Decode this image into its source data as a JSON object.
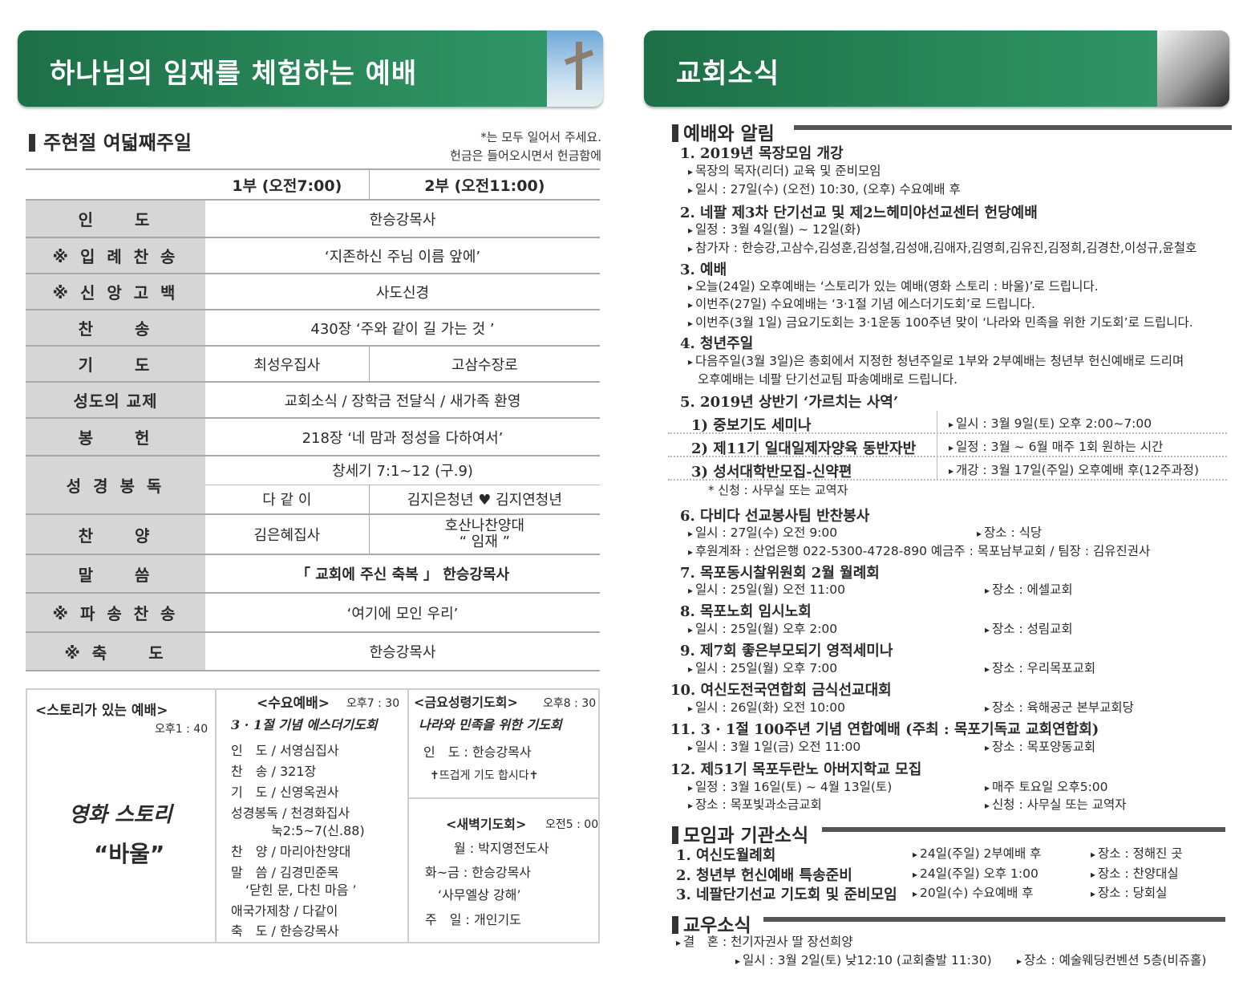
{
  "left": {
    "banner_title": "하나님의 임재를 체험하는 예배",
    "subtitle": "주현절 여덟째주일",
    "notes": [
      "*는 모두 일어서 주세요.",
      "헌금은 들어오시면서 헌금함에"
    ],
    "services": [
      "1부 (오전7:00)",
      "2부 (오전11:00)"
    ],
    "rows": [
      {
        "label": "인　　도",
        "value": "한승강목사"
      },
      {
        "label": "※ 입 례 찬 송",
        "value": "‘지존하신 주님 이름 앞에’"
      },
      {
        "label": "※ 신 앙 고 백",
        "value": "사도신경"
      },
      {
        "label": "찬　　송",
        "value": "430장 ‘주와 같이 길 가는 것 ’"
      },
      {
        "label": "기　　도",
        "v1": "최성우집사",
        "v2": "고삼수장로"
      },
      {
        "label": "성도의 교제",
        "value": "교회소식 / 장학금 전달식 / 새가족 환영"
      },
      {
        "label": "봉　　헌",
        "value": "218장 ‘네 맘과 정성을 다하여서’"
      },
      {
        "label": "성 경 봉 독",
        "value": "창세기 7:1~12 (구.9)",
        "v1": "다 같 이",
        "v2": "김지은청년 ♥ 김지연청년"
      },
      {
        "label": "찬　　양",
        "v1": "김은혜집사",
        "v2a": "호산나찬양대",
        "v2b": "“ 임재 ”"
      },
      {
        "label": "말　　씀",
        "value": "「 교회에 주신 축복 」 한승강목사"
      },
      {
        "label": "※ 파 송 찬 송",
        "value": "‘여기에 모인 우리’"
      },
      {
        "label": "※ 축　　도",
        "value": "한승강목사"
      }
    ],
    "story": {
      "title": "<스토리가 있는 예배>",
      "time": "오후1 : 40",
      "line1": "영화 스토리",
      "line2": "“바울”"
    },
    "wed": {
      "title": "<수요예배>",
      "time": "오후7 : 30",
      "theme": "3 · 1절 기념 에스더기도회",
      "lines": [
        "인　도 / 서영심집사",
        "찬　송 / 321장",
        "기　도 / 신영옥권사",
        "성경봉독 / 천경화집사",
        "눅2:5~7(신.88)",
        "찬　양 / 마리아찬양대",
        "말　씀 / 김경민준목",
        "‘닫힌 문, 다친 마음 ’",
        "애국가제창 / 다같이",
        "축　도 / 한승강목사"
      ]
    },
    "fri": {
      "title": "<금요성령기도회>",
      "time": "오후8 : 30",
      "theme": "나라와 민족을 위한 기도회",
      "lead": "인　도 : 한승강목사",
      "pray": "✝뜨겁게 기도 합시다✝"
    },
    "dawn": {
      "title": "<새벽기도회>",
      "time": "오전5 : 00",
      "lines": [
        "월 : 박지영전도사",
        "화~금 : 한승강목사",
        "‘사무엘상 강해’",
        "주　일 : 개인기도"
      ]
    }
  },
  "right": {
    "banner_title": "교회소식",
    "sec1": {
      "title": "예배와 알림",
      "items": [
        {
          "title": "1. 2019년 목장모임 개강",
          "lines": [
            "목장의 목자(리더) 교육 및 준비모임",
            "일시 : 27일(수) (오전) 10:30, (오후) 수요예배 후"
          ]
        },
        {
          "title": "2. 네팔 제3차 단기선교 및 제2느헤미야선교센터 헌당예배",
          "lines": [
            "일정 : 3월 4일(월) ~ 12일(화)",
            "참가자 : 한승강,고삼수,김성훈,김성철,김성애,김애자,김영희,김유진,김정희,김경찬,이성규,윤철호"
          ]
        },
        {
          "title": "3. 예배",
          "lines": [
            "오늘(24일) 오후예배는 ‘스토리가 있는 예배(영화 스토리 : 바울)’로 드립니다.",
            "이번주(27일) 수요예배는  ‘3·1절 기념 에스더기도회’로 드립니다.",
            "이번주(3월 1일) 금요기도회는 3·1운동 100주년 맞이 ‘나라와 민족을 위한 기도회’로 드립니다."
          ]
        },
        {
          "title": "4. 청년주일",
          "lines": [
            "다음주일(3월 3일)은 총회에서 지정한 청년주일로 1부와 2부예배는 청년부 헌신예배로 드리며",
            "오후예배는 네팔 단기선교팀 파송예배로 드립니다."
          ]
        },
        {
          "title": "5. 2019년 상반기 ‘가르치는 사역’",
          "rows": [
            {
              "name": "1) 중보기도 세미나",
              "info": "일시 : 3월 9일(토) 오후 2:00~7:00"
            },
            {
              "name": "2) 제11기 일대일제자양육 동반자반",
              "info": "일정 : 3월 ~ 6월 매주 1회 원하는 시간"
            },
            {
              "name": "3) 성서대학반모집-신약편",
              "info": "개강 : 3월 17일(주일) 오후예배 후(12주과정)"
            }
          ],
          "note": "* 신청 : 사무실 또는 교역자"
        },
        {
          "title": "6. 다비다 선교봉사팀 반찬봉사",
          "lines": [
            "일시 : 27일(수) 오전 9:00",
            "후원계좌 : 산업은행 022-5300-4728-890 예금주 : 목포남부교회 / 팀장 : 김유진권사"
          ],
          "right": [
            "장소 : 식당"
          ]
        },
        {
          "title": "7. 목포동시찰위원회 2월 월례회",
          "lines": [
            "일시 : 25일(월) 오전 11:00"
          ],
          "right": [
            "장소 : 에셀교회"
          ]
        },
        {
          "title": "8. 목포노회 임시노회",
          "lines": [
            "일시 : 25일(월) 오후 2:00"
          ],
          "right": [
            "장소 : 성림교회"
          ]
        },
        {
          "title": "9. 제7회 좋은부모되기 영적세미나",
          "lines": [
            "일시 : 25일(월) 오후 7:00"
          ],
          "right": [
            "장소 : 우리목포교회"
          ]
        },
        {
          "title": "10. 여신도전국연합회 금식선교대회",
          "lines": [
            "일시 : 26일(화) 오전 10:00"
          ],
          "right": [
            "장소 : 육해공군 본부교회당"
          ]
        },
        {
          "title": "11. 3 · 1절 100주년 기념 연합예배 (주최 : 목포기독교 교회연합회)",
          "lines": [
            "일시 : 3월 1일(금) 오전 11:00"
          ],
          "right": [
            "장소 : 목포양동교회"
          ]
        },
        {
          "title": "12. 제51기 목포두란노 아버지학교 모집",
          "lines": [
            "일정 : 3월 16일(토) ~ 4월 13일(토)",
            "장소 : 목포빛과소금교회"
          ],
          "right": [
            "매주 토요일 오후5:00",
            "신청 : 사무실 또는 교역자"
          ]
        }
      ]
    },
    "sec2": {
      "title": "모임과 기관소식",
      "items": [
        {
          "name": "1. 여신도월례회",
          "when": "24일(주일) 2부예배 후",
          "where": "장소 : 정해진 곳"
        },
        {
          "name": "2. 청년부 헌신예배 특송준비",
          "when": "24일(주일) 오후 1:00",
          "where": "장소 : 찬양대실"
        },
        {
          "name": "3. 네팔단기선교 기도회 및 준비모임",
          "when": "20일(수) 수요예배 후",
          "where": "장소 : 당회실"
        }
      ]
    },
    "sec3": {
      "title": "교우소식",
      "wedding": "결　혼 : 천기자권사 딸 장선희양",
      "when": "일시 : 3월 2일(토) 낮12:10 (교회출발 11:30)",
      "where": "장소 : 예술웨딩컨벤션 5층(비쥬홀)"
    }
  },
  "colors": {
    "banner_green": "#2a8a5c",
    "label_gray": "#d6d6d6"
  }
}
